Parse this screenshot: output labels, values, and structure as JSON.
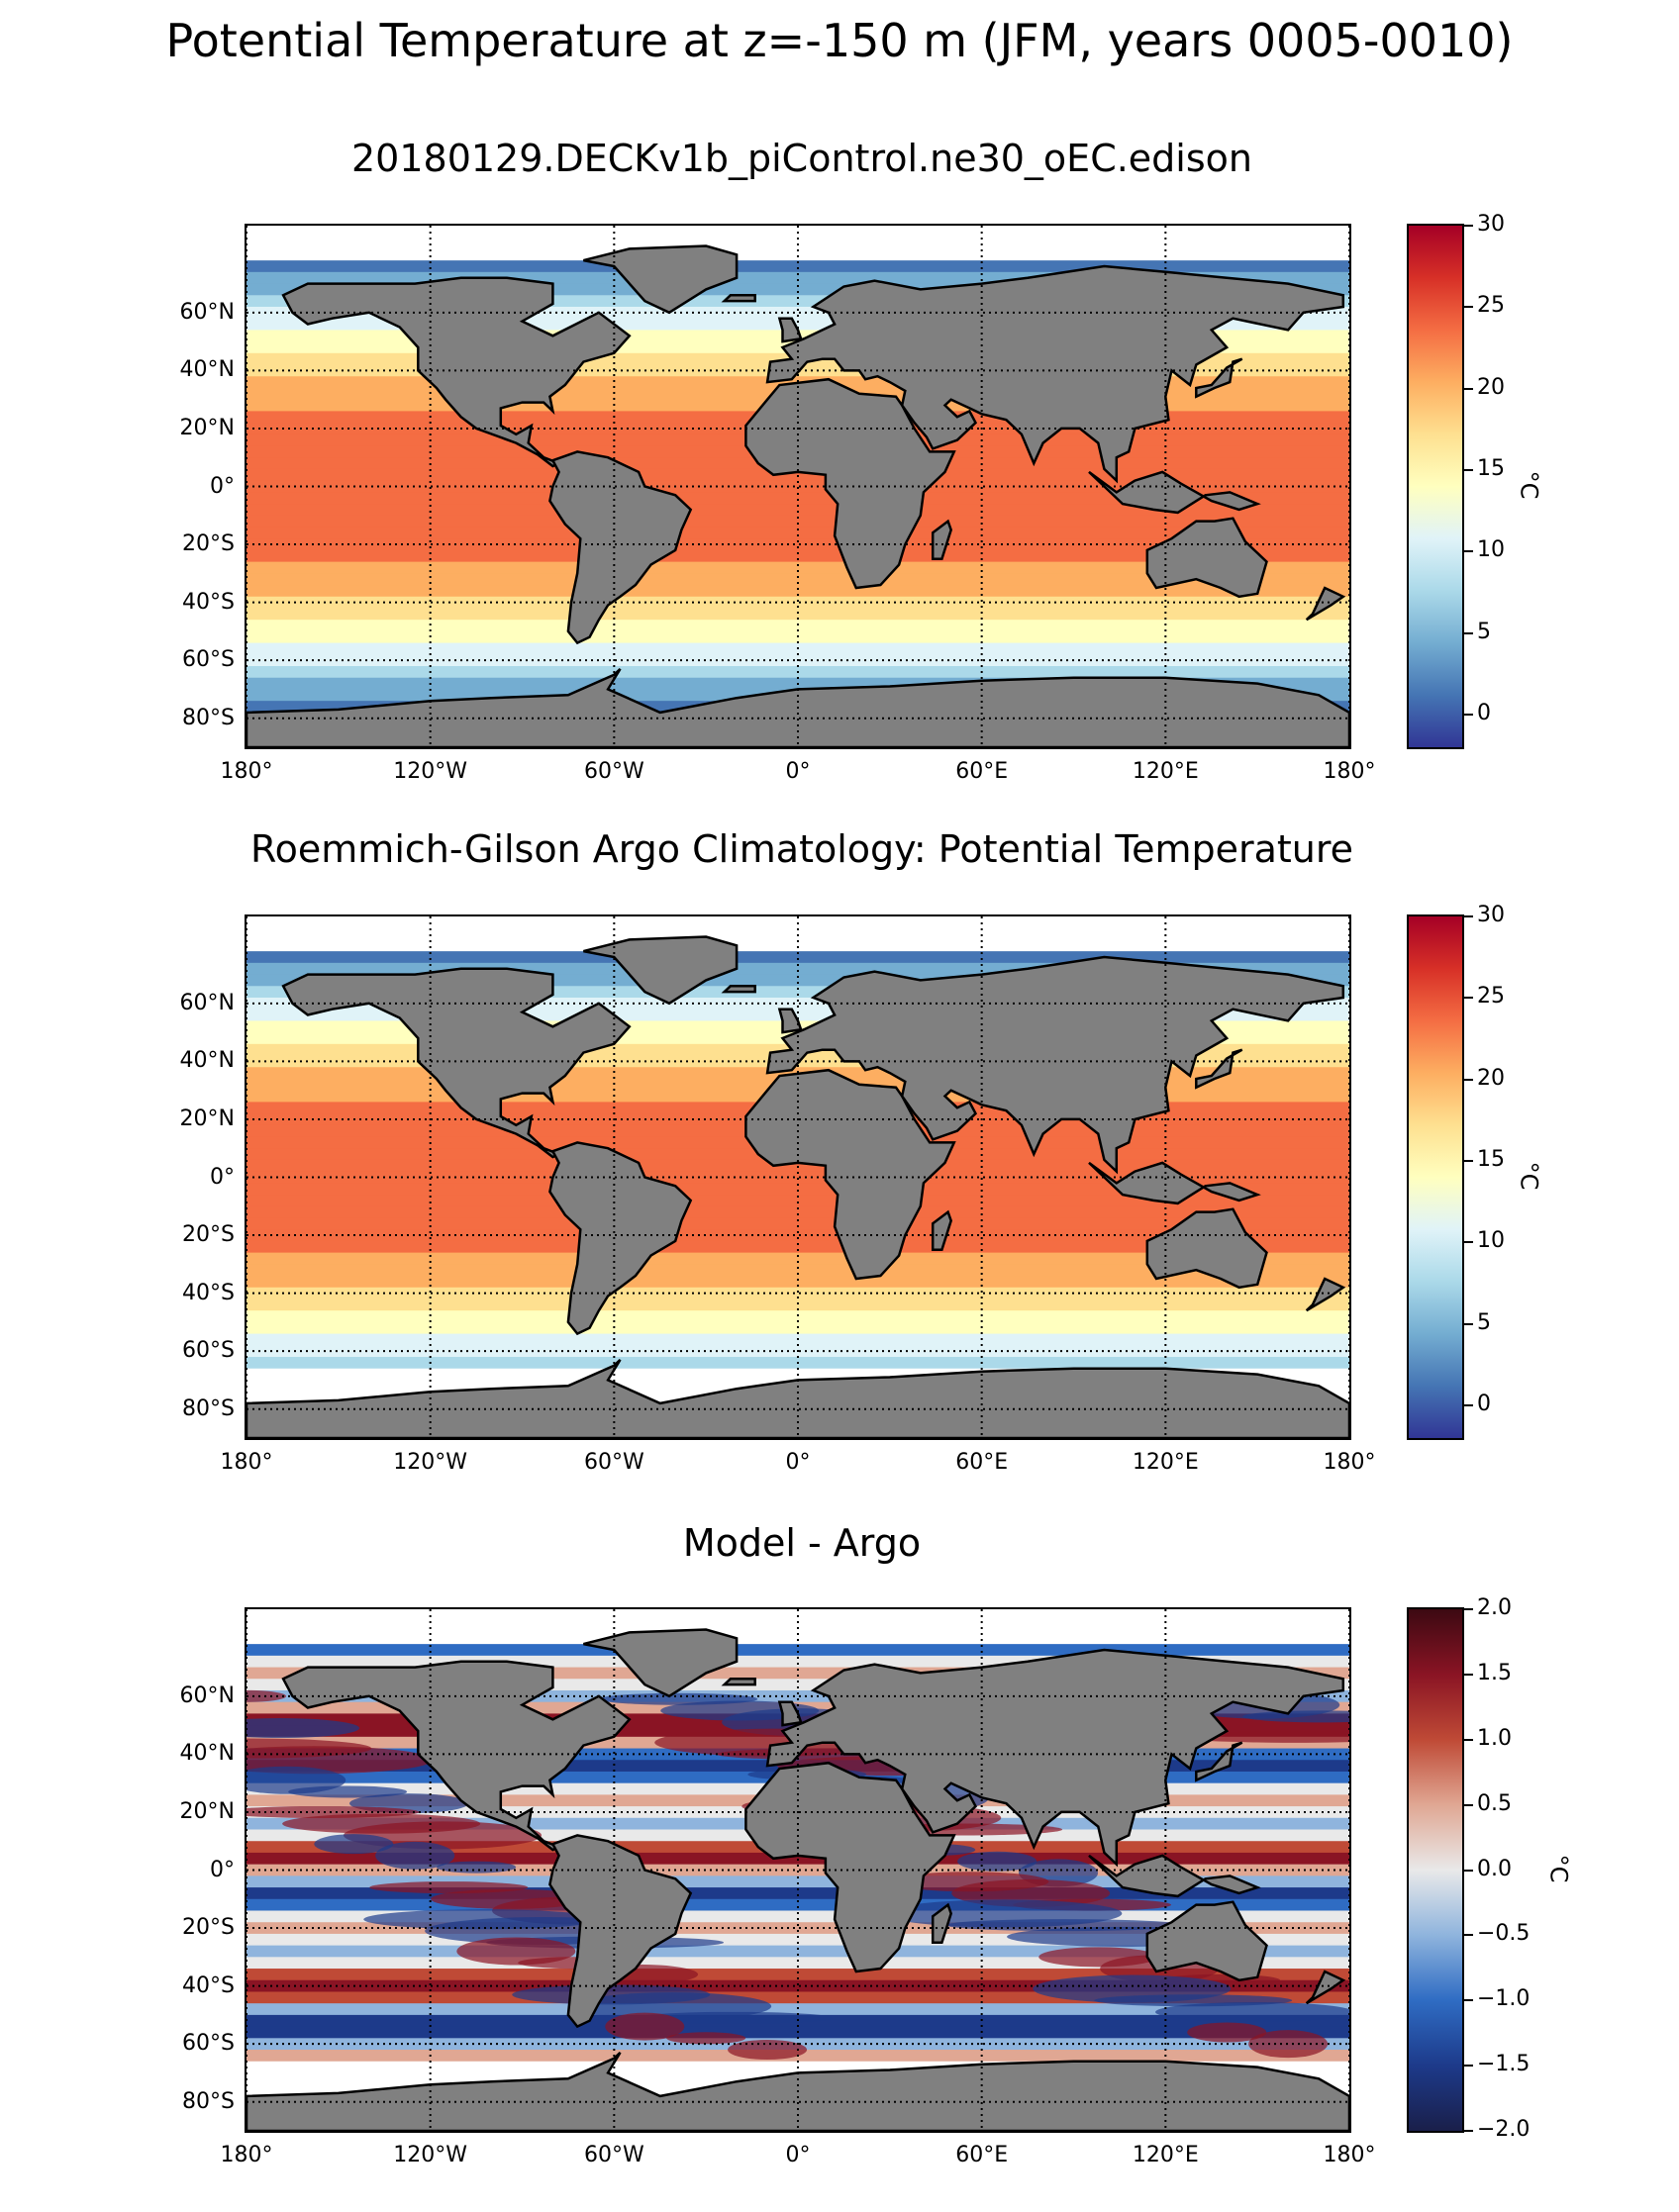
{
  "figure": {
    "title": "Potential Temperature at z=-150 m (JFM, years 0005-0010)"
  },
  "panels": [
    {
      "title": "20180129.DECKv1b_piControl.ne30_oEC.edison",
      "colormap": "temperature",
      "colorbar": {
        "ticks": [
          "30",
          "25",
          "20",
          "15",
          "10",
          "5",
          "0"
        ],
        "unit": "°C",
        "min": -2,
        "max": 30
      },
      "missing_antarctic_shelf": false
    },
    {
      "title": "Roemmich-Gilson Argo Climatology: Potential Temperature",
      "colormap": "temperature",
      "colorbar": {
        "ticks": [
          "30",
          "25",
          "20",
          "15",
          "10",
          "5",
          "0"
        ],
        "unit": "°C",
        "min": -2,
        "max": 30
      },
      "missing_antarctic_shelf": true
    },
    {
      "title": "Model - Argo",
      "colormap": "difference",
      "colorbar": {
        "ticks": [
          "2.0",
          "1.5",
          "1.0",
          "0.5",
          "0.0",
          "−0.5",
          "−1.0",
          "−1.5",
          "−2.0"
        ],
        "unit": "°C",
        "min": -2.0,
        "max": 2.0
      },
      "missing_antarctic_shelf": true
    }
  ],
  "axes": {
    "lat_labels": [
      "60°N",
      "40°N",
      "20°N",
      "0°",
      "20°S",
      "40°S",
      "60°S",
      "80°S"
    ],
    "lon_labels": [
      "180°",
      "120°W",
      "60°W",
      "0°",
      "60°E",
      "120°E",
      "180°"
    ]
  },
  "colors": {
    "land": "#808080",
    "coast": "#000000",
    "grid": "#000000",
    "no_data": "#ffffff"
  }
}
